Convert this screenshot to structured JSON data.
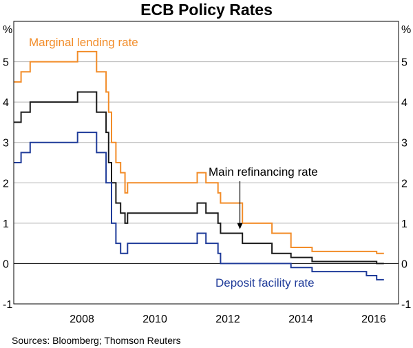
{
  "chart_data": {
    "type": "line",
    "title": "ECB Policy Rates",
    "unit_left": "%",
    "unit_right": "%",
    "ylim": [
      -1,
      6
    ],
    "xlim": [
      2006.25,
      2016.8
    ],
    "yticks": [
      -1,
      0,
      1,
      2,
      3,
      4,
      5
    ],
    "xticks": [
      2008,
      2010,
      2012,
      2014,
      2016
    ],
    "grid": true,
    "source": "Sources:   Bloomberg; Thomson Reuters",
    "series": [
      {
        "name": "Marginal lending rate",
        "color": "#f28c28",
        "x": [
          2006.25,
          2006.45,
          2006.45,
          2006.7,
          2006.7,
          2006.95,
          2006.95,
          2007.45,
          2007.45,
          2008.0,
          2008.0,
          2008.52,
          2008.52,
          2008.78,
          2008.78,
          2008.85,
          2008.85,
          2008.93,
          2008.93,
          2009.05,
          2009.05,
          2009.18,
          2009.18,
          2009.3,
          2009.3,
          2009.37,
          2009.37,
          2011.28,
          2011.28,
          2011.52,
          2011.52,
          2011.85,
          2011.85,
          2011.92,
          2011.92,
          2012.52,
          2012.52,
          2013.33,
          2013.33,
          2013.85,
          2013.85,
          2014.43,
          2014.43,
          2014.69,
          2014.69,
          2016.2,
          2016.2,
          2016.4
        ],
        "values": [
          4.5,
          4.5,
          4.75,
          4.75,
          5.0,
          5.0,
          5.0,
          5.0,
          5.0,
          5.0,
          5.25,
          5.25,
          4.75,
          4.75,
          4.25,
          4.25,
          3.75,
          3.75,
          3.0,
          3.0,
          2.5,
          2.5,
          2.25,
          2.25,
          1.75,
          1.75,
          2.0,
          2.0,
          2.25,
          2.25,
          2.0,
          2.0,
          1.75,
          1.75,
          1.5,
          1.5,
          1.0,
          1.0,
          0.75,
          0.75,
          0.4,
          0.4,
          0.3,
          0.3,
          0.3,
          0.3,
          0.25,
          0.25
        ]
      },
      {
        "name": "Main refinancing rate",
        "color": "#1a1a1a",
        "x": [
          2006.25,
          2006.45,
          2006.45,
          2006.7,
          2006.7,
          2006.95,
          2006.95,
          2007.45,
          2007.45,
          2008.0,
          2008.0,
          2008.52,
          2008.52,
          2008.78,
          2008.78,
          2008.85,
          2008.85,
          2008.93,
          2008.93,
          2009.05,
          2009.05,
          2009.18,
          2009.18,
          2009.3,
          2009.3,
          2009.37,
          2009.37,
          2011.28,
          2011.28,
          2011.52,
          2011.52,
          2011.85,
          2011.85,
          2011.92,
          2011.92,
          2012.52,
          2012.52,
          2013.33,
          2013.33,
          2013.85,
          2013.85,
          2014.43,
          2014.43,
          2014.69,
          2014.69,
          2016.2,
          2016.2,
          2016.4
        ],
        "values": [
          3.5,
          3.5,
          3.75,
          3.75,
          4.0,
          4.0,
          4.0,
          4.0,
          4.0,
          4.0,
          4.25,
          4.25,
          3.75,
          3.75,
          3.25,
          3.25,
          2.5,
          2.5,
          2.0,
          2.0,
          1.5,
          1.5,
          1.25,
          1.25,
          1.0,
          1.0,
          1.25,
          1.25,
          1.5,
          1.5,
          1.25,
          1.25,
          1.0,
          1.0,
          0.75,
          0.75,
          0.5,
          0.5,
          0.25,
          0.25,
          0.15,
          0.15,
          0.05,
          0.05,
          0.05,
          0.05,
          0.0,
          0.0
        ]
      },
      {
        "name": "Deposit facility rate",
        "color": "#1f3b99",
        "x": [
          2006.25,
          2006.45,
          2006.45,
          2006.7,
          2006.7,
          2006.95,
          2006.95,
          2007.45,
          2007.45,
          2008.0,
          2008.0,
          2008.52,
          2008.52,
          2008.78,
          2008.78,
          2008.85,
          2008.85,
          2008.93,
          2008.93,
          2009.05,
          2009.05,
          2009.18,
          2009.18,
          2009.3,
          2009.3,
          2009.37,
          2009.37,
          2011.28,
          2011.28,
          2011.52,
          2011.52,
          2011.85,
          2011.85,
          2011.92,
          2011.92,
          2012.52,
          2012.52,
          2013.33,
          2013.33,
          2013.85,
          2013.85,
          2014.43,
          2014.43,
          2014.69,
          2014.69,
          2015.92,
          2015.92,
          2016.2,
          2016.2,
          2016.4
        ],
        "values": [
          2.5,
          2.5,
          2.75,
          2.75,
          3.0,
          3.0,
          3.0,
          3.0,
          3.0,
          3.0,
          3.25,
          3.25,
          2.75,
          2.75,
          2.0,
          2.0,
          2.0,
          2.0,
          1.0,
          1.0,
          0.5,
          0.5,
          0.25,
          0.25,
          0.25,
          0.25,
          0.5,
          0.5,
          0.75,
          0.75,
          0.5,
          0.5,
          0.25,
          0.25,
          0.0,
          0.0,
          0.0,
          0.0,
          0.0,
          0.0,
          -0.1,
          -0.1,
          -0.2,
          -0.2,
          -0.2,
          -0.2,
          -0.3,
          -0.3,
          -0.4,
          -0.4
        ]
      }
    ],
    "annotations": [
      {
        "text": "Marginal lending rate",
        "series": 0,
        "color": "#f28c28"
      },
      {
        "text": "Main refinancing rate",
        "series": 1,
        "color": "#000000",
        "arrow_to": [
          2012.45,
          0.85
        ]
      },
      {
        "text": "Deposit facility rate",
        "series": 2,
        "color": "#1f3b99"
      }
    ]
  }
}
